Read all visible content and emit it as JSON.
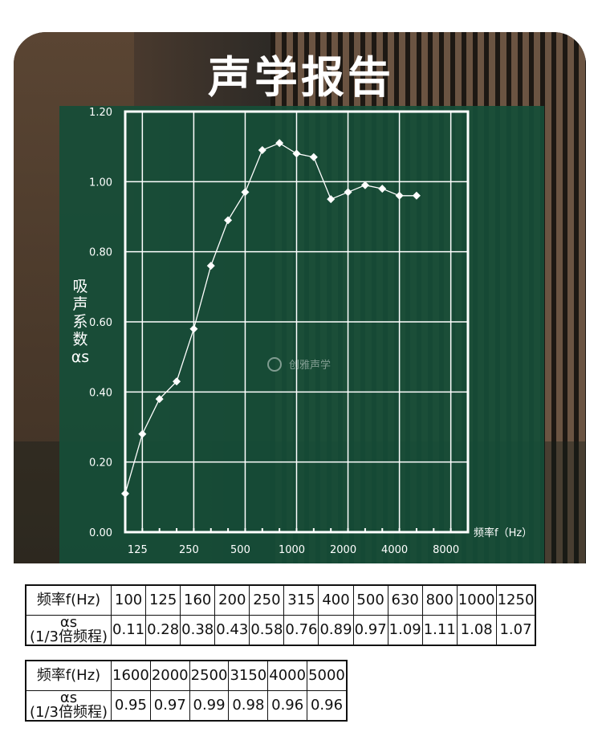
{
  "title": "声学报告",
  "watermark": "创雅声学",
  "chart_data": {
    "type": "line",
    "ylabel": "吸声系数αs",
    "xlabel": "频率f（Hz）",
    "ylim": [
      0,
      1.2
    ],
    "yticks": [
      "0.00",
      "0.20",
      "0.40",
      "0.60",
      "0.80",
      "1.00",
      "1.20"
    ],
    "xticks": [
      "125",
      "250",
      "500",
      "1000",
      "2000",
      "4000",
      "8000"
    ],
    "x": [
      "100",
      "125",
      "160",
      "200",
      "250",
      "315",
      "400",
      "500",
      "630",
      "800",
      "1000",
      "1250",
      "1600",
      "2000",
      "2500",
      "3150",
      "4000",
      "5000"
    ],
    "values": [
      0.11,
      0.28,
      0.38,
      0.43,
      0.58,
      0.76,
      0.89,
      0.97,
      1.09,
      1.11,
      1.08,
      1.07,
      0.95,
      0.97,
      0.99,
      0.98,
      0.96,
      0.96
    ],
    "grid": true,
    "line_color": "#ffffff",
    "background": "#164e38"
  },
  "table": {
    "freq_header": "频率f(Hz)",
    "alpha_header_1": "αs",
    "alpha_header_2": "(1/3倍频程)",
    "part1": {
      "freqs": [
        "100",
        "125",
        "160",
        "200",
        "250",
        "315",
        "400",
        "500",
        "630",
        "800",
        "1000",
        "1250"
      ],
      "values": [
        "0.11",
        "0.28",
        "0.38",
        "0.43",
        "0.58",
        "0.76",
        "0.89",
        "0.97",
        "1.09",
        "1.11",
        "1.08",
        "1.07"
      ]
    },
    "part2": {
      "freqs": [
        "1600",
        "2000",
        "2500",
        "3150",
        "4000",
        "5000"
      ],
      "values": [
        "0.95",
        "0.97",
        "0.99",
        "0.98",
        "0.96",
        "0.96"
      ]
    }
  }
}
